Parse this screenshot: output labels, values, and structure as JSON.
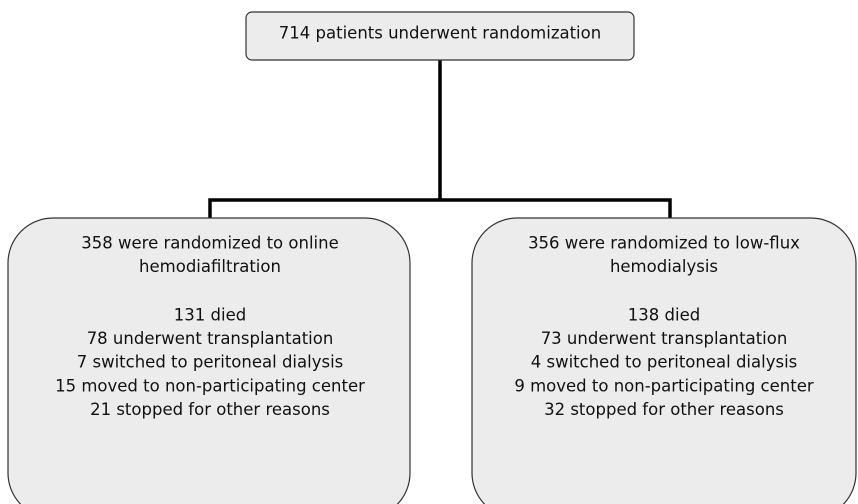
{
  "top": {
    "label": "714 patients underwent randomization"
  },
  "boxes": [
    {
      "heading": [
        "358 were randomized to online",
        "hemodiafiltration"
      ],
      "outcomes": [
        "131 died",
        "78 underwent transplantation",
        "7 switched to peritoneal dialysis",
        "15 moved to non-participating center",
        "21 stopped for other reasons"
      ]
    },
    {
      "heading": [
        "356 were randomized to low-flux",
        "hemodialysis"
      ],
      "outcomes": [
        "138 died",
        "73 underwent transplantation",
        "4 switched to peritoneal dialysis",
        "9 moved to non-participating center",
        "32 stopped for other reasons"
      ]
    }
  ]
}
